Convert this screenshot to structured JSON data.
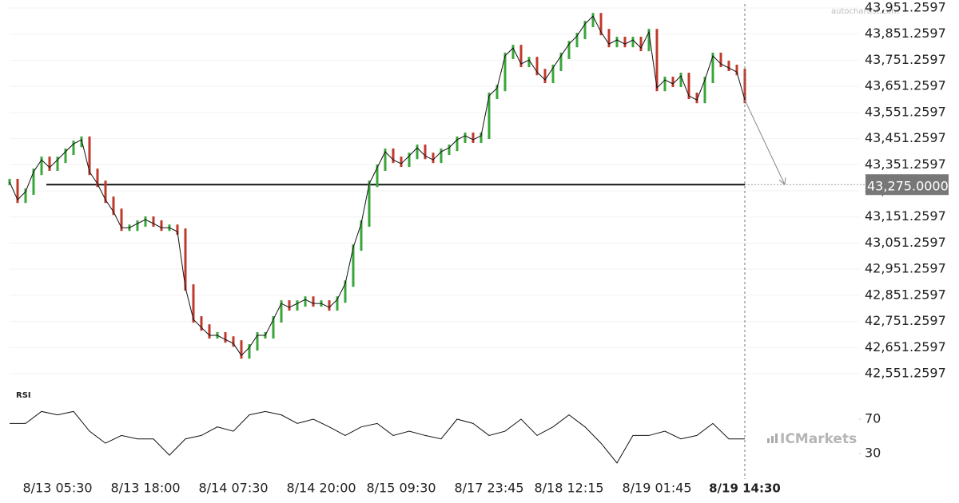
{
  "chart_data": [
    {
      "type": "bar-line",
      "up_color": "#3aa63a",
      "down_color": "#c0392b",
      "ylim": [
        42500,
        44000
      ],
      "yticks": [
        {
          "value": 42551.2597,
          "label": "42,551.2597"
        },
        {
          "value": 42651.2597,
          "label": "42,651.2597"
        },
        {
          "value": 42751.2597,
          "label": "42,751.2597"
        },
        {
          "value": 42851.2597,
          "label": "42,851.2597"
        },
        {
          "value": 42951.2597,
          "label": "42,951.2597"
        },
        {
          "value": 43051.2597,
          "label": "43,051.2597"
        },
        {
          "value": 43151.2597,
          "label": "43,151.2597"
        },
        {
          "value": 43251.2597,
          "label": "43,251.2597"
        },
        {
          "value": 43351.2597,
          "label": "43,351.2597"
        },
        {
          "value": 43451.2597,
          "label": "43,451.2597"
        },
        {
          "value": 43551.2597,
          "label": "43,551.2597"
        },
        {
          "value": 43651.2597,
          "label": "43,651.2597"
        },
        {
          "value": 43751.2597,
          "label": "43,751.2597"
        },
        {
          "value": 43851.2597,
          "label": "43,851.2597"
        },
        {
          "value": 43951.2597,
          "label": "43,951.2597"
        }
      ],
      "xlim": [
        0,
        92
      ],
      "xticks": [
        {
          "value": 6,
          "label": "8/13 05:30"
        },
        {
          "value": 17,
          "label": "8/13 18:00"
        },
        {
          "value": 28,
          "label": "8/14 07:30"
        },
        {
          "value": 39,
          "label": "8/14 20:00"
        },
        {
          "value": 49,
          "label": "8/15 09:30"
        },
        {
          "value": 60,
          "label": "8/17 23:45"
        },
        {
          "value": 70,
          "label": "8/18 12:15"
        },
        {
          "value": 81,
          "label": "8/19 01:45"
        },
        {
          "value": 92,
          "label": "8/19 14:30"
        }
      ],
      "values": [
        43285,
        43217,
        43248,
        43324,
        43370,
        43340,
        43370,
        43401,
        43431,
        43447,
        43324,
        43278,
        43217,
        43171,
        43110,
        43110,
        43126,
        43141,
        43126,
        43110,
        43110,
        43095,
        42881,
        42759,
        42728,
        42698,
        42698,
        42682,
        42667,
        42621,
        42652,
        42698,
        42698,
        42759,
        42820,
        42805,
        42820,
        42835,
        42820,
        42820,
        42805,
        42835,
        42896,
        43034,
        43126,
        43278,
        43340,
        43401,
        43370,
        43355,
        43385,
        43416,
        43385,
        43370,
        43401,
        43416,
        43447,
        43462,
        43447,
        43462,
        43615,
        43645,
        43768,
        43798,
        43737,
        43752,
        43706,
        43676,
        43722,
        43768,
        43813,
        43844,
        43890,
        43920,
        43859,
        43813,
        43829,
        43813,
        43829,
        43798,
        43859,
        43645,
        43676,
        43661,
        43691,
        43615,
        43599,
        43676,
        43768,
        43737,
        43722,
        43706,
        43599
      ],
      "level": {
        "value": 43275,
        "label": "43,275.0000"
      },
      "source": "autochartist.com",
      "brand": "ICMarkets"
    },
    {
      "type": "line",
      "title": "RSI",
      "color": "#111",
      "ylim": [
        10,
        90
      ],
      "yticks": [
        30,
        70
      ],
      "values": [
        65,
        65,
        79,
        75,
        79,
        56,
        42,
        51,
        47,
        47,
        28,
        47,
        51,
        61,
        56,
        75,
        79,
        75,
        65,
        70,
        61,
        51,
        61,
        65,
        51,
        56,
        51,
        47,
        70,
        65,
        51,
        56,
        70,
        51,
        61,
        75,
        61,
        42,
        19,
        51,
        51,
        56,
        47,
        51,
        65,
        47,
        47
      ]
    }
  ]
}
